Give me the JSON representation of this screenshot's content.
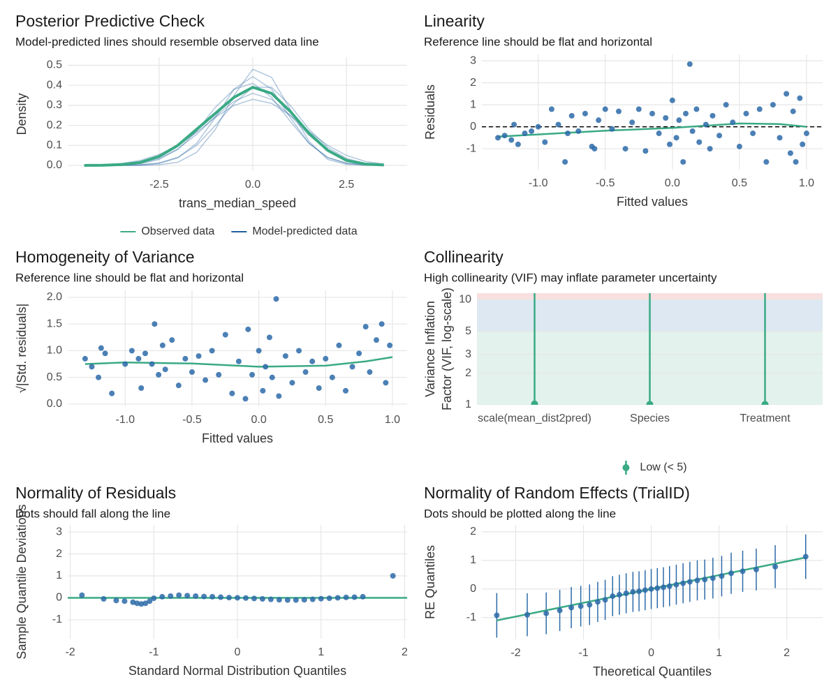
{
  "chart_data": [
    {
      "type": "line",
      "title": "Posterior Predictive Check",
      "subtitle": "Model-predicted lines should resemble observed data line",
      "x_label": "trans_median_speed",
      "y_label": "Density",
      "xlim": [
        -4.94,
        4.12
      ],
      "ylim": [
        -0.028,
        0.54
      ],
      "xticks": [
        -2.5,
        {
          "value": 0,
          "label": "0.0"
        },
        2.5
      ],
      "yticks": [
        {
          "value": 0,
          "label": "0.0"
        },
        0.1,
        0.2,
        0.3,
        0.4,
        0.5
      ],
      "x": [
        -4.5,
        -4,
        -3.5,
        -3,
        -2.5,
        -2,
        -1.5,
        -1,
        -0.5,
        0,
        0.5,
        1,
        1.5,
        2,
        2.5,
        3,
        3.5
      ],
      "legend": "bottom",
      "series": [
        {
          "name": "Observed data",
          "color": "#3aaa85",
          "values": [
            0,
            0.001,
            0.004,
            0.015,
            0.045,
            0.1,
            0.18,
            0.26,
            0.34,
            0.39,
            0.36,
            0.27,
            0.16,
            0.075,
            0.025,
            0.007,
            0.002
          ]
        },
        {
          "name": "Model-predicted data",
          "color": "#1f5f9e",
          "values": [
            [
              0,
              0,
              0,
              0.002,
              0.01,
              0.038,
              0.11,
              0.239,
              0.381,
              0.443,
              0.381,
              0.239,
              0.11,
              0.038,
              0.01,
              0.002,
              0
            ],
            [
              0,
              0.001,
              0.004,
              0.012,
              0.035,
              0.082,
              0.155,
              0.245,
              0.32,
              0.36,
              0.33,
              0.25,
              0.15,
              0.075,
              0.028,
              0.008,
              0.002
            ],
            [
              0,
              0,
              0.001,
              0.003,
              0.012,
              0.04,
              0.1,
              0.2,
              0.31,
              0.39,
              0.39,
              0.3,
              0.18,
              0.09,
              0.035,
              0.01,
              0.002
            ],
            [
              0,
              0,
              0.002,
              0.008,
              0.03,
              0.08,
              0.17,
              0.29,
              0.38,
              0.41,
              0.34,
              0.22,
              0.11,
              0.04,
              0.012,
              0.003,
              0
            ],
            [
              0.001,
              0.003,
              0.01,
              0.025,
              0.055,
              0.1,
              0.165,
              0.24,
              0.3,
              0.33,
              0.31,
              0.25,
              0.17,
              0.1,
              0.05,
              0.02,
              0.007
            ],
            [
              0,
              0,
              0,
              0,
              0.003,
              0.016,
              0.065,
              0.18,
              0.35,
              0.48,
              0.44,
              0.28,
              0.12,
              0.03,
              0.005,
              0,
              0
            ]
          ]
        }
      ]
    },
    {
      "type": "scatter",
      "title": "Linearity",
      "subtitle": "Reference line should be flat and horizontal",
      "x_label": "Fitted values",
      "y_label": "Residuals",
      "xlim": [
        -1.42,
        1.12
      ],
      "ylim": [
        -1.95,
        3.29
      ],
      "xticks": [
        {
          "value": -1,
          "label": "-1.0"
        },
        -0.5,
        {
          "value": 0,
          "label": "0.0"
        },
        0.5,
        {
          "value": 1,
          "label": "1.0"
        }
      ],
      "yticks": [
        -1,
        0,
        1,
        2,
        3
      ],
      "hline": {
        "value": 0,
        "color": "#000000",
        "dashed": true
      },
      "points": {
        "color": "#2c6aa8",
        "x": [
          -1.3,
          -1.25,
          -1.2,
          -1.18,
          -1.15,
          -1.1,
          -1.05,
          -1.0,
          -0.95,
          -0.9,
          -0.85,
          -0.8,
          -0.78,
          -0.75,
          -0.7,
          -0.65,
          -0.6,
          -0.58,
          -0.55,
          -0.5,
          -0.45,
          -0.4,
          -0.35,
          -0.3,
          -0.25,
          -0.2,
          -0.15,
          -0.1,
          -0.05,
          -0.02,
          0.0,
          0.03,
          0.05,
          0.08,
          0.1,
          0.13,
          0.15,
          0.18,
          0.2,
          0.25,
          0.28,
          0.3,
          0.35,
          0.4,
          0.45,
          0.5,
          0.55,
          0.6,
          0.65,
          0.7,
          0.75,
          0.8,
          0.85,
          0.88,
          0.9,
          0.92,
          0.95,
          0.97,
          1.0
        ],
        "y": [
          -0.5,
          -0.4,
          -0.6,
          0.1,
          -0.8,
          -0.3,
          -0.2,
          0.0,
          -0.7,
          0.8,
          0.1,
          -1.6,
          -0.3,
          0.5,
          -0.2,
          0.6,
          -0.9,
          -1.0,
          0.3,
          0.8,
          -0.1,
          0.7,
          -1.0,
          0.2,
          0.8,
          -1.1,
          0.6,
          -0.3,
          0.4,
          -0.8,
          1.2,
          -0.5,
          0.3,
          -1.6,
          0.6,
          2.85,
          -0.2,
          0.8,
          -0.7,
          0.1,
          -1.0,
          0.5,
          -0.4,
          1.0,
          0.2,
          -0.9,
          0.6,
          -0.3,
          0.8,
          -1.6,
          1.0,
          -0.5,
          1.5,
          -1.2,
          0.7,
          -1.6,
          1.3,
          -0.8,
          -0.3
        ]
      },
      "smooth": {
        "color": "#3aaa85",
        "x": [
          -1.3,
          -1.0,
          -0.5,
          0,
          0.5,
          0.8,
          1.0
        ],
        "y": [
          -0.45,
          -0.35,
          -0.18,
          -0.05,
          0.15,
          0.12,
          0.0
        ]
      }
    },
    {
      "type": "scatter",
      "title": "Homogeneity of Variance",
      "subtitle": "Reference line should be flat and horizontal",
      "x_label": "Fitted values",
      "y_label": "√|Std. residuals|",
      "xlim": [
        -1.43,
        1.11
      ],
      "ylim": [
        -0.04,
        2.13
      ],
      "xticks": [
        {
          "value": -1,
          "label": "-1.0"
        },
        -0.5,
        {
          "value": 0,
          "label": "0.0"
        },
        0.5,
        {
          "value": 1,
          "label": "1.0"
        }
      ],
      "yticks": [
        {
          "value": 0,
          "label": "0.0"
        },
        0.5,
        {
          "value": 1,
          "label": "1.0"
        },
        1.5,
        {
          "value": 2,
          "label": "2.0"
        }
      ],
      "points": {
        "color": "#2c6aa8",
        "x": [
          -1.3,
          -1.25,
          -1.2,
          -1.18,
          -1.15,
          -1.1,
          -1.0,
          -0.95,
          -0.9,
          -0.88,
          -0.85,
          -0.8,
          -0.78,
          -0.75,
          -0.72,
          -0.7,
          -0.65,
          -0.6,
          -0.55,
          -0.5,
          -0.45,
          -0.4,
          -0.35,
          -0.3,
          -0.25,
          -0.2,
          -0.15,
          -0.1,
          -0.08,
          -0.05,
          0.0,
          0.03,
          0.05,
          0.08,
          0.1,
          0.13,
          0.15,
          0.2,
          0.25,
          0.3,
          0.35,
          0.4,
          0.45,
          0.5,
          0.55,
          0.6,
          0.65,
          0.7,
          0.75,
          0.8,
          0.83,
          0.88,
          0.92,
          0.95,
          0.98
        ],
        "y": [
          0.85,
          0.7,
          0.5,
          1.05,
          0.95,
          0.2,
          0.75,
          1.0,
          0.85,
          0.3,
          0.95,
          0.75,
          1.5,
          0.55,
          1.1,
          0.65,
          1.2,
          0.35,
          0.85,
          0.6,
          0.9,
          0.45,
          1.0,
          0.55,
          1.3,
          0.2,
          0.8,
          0.1,
          1.4,
          0.55,
          1.0,
          0.25,
          0.7,
          1.25,
          0.5,
          1.97,
          0.15,
          0.9,
          0.4,
          1.0,
          0.6,
          0.8,
          0.3,
          0.85,
          0.5,
          1.1,
          0.25,
          0.7,
          0.95,
          1.45,
          0.6,
          1.2,
          1.5,
          0.4,
          1.1
        ]
      },
      "smooth": {
        "color": "#3aaa85",
        "x": [
          -1.3,
          -1.0,
          -0.5,
          0,
          0.5,
          0.8,
          1.0
        ],
        "y": [
          0.75,
          0.78,
          0.76,
          0.7,
          0.72,
          0.8,
          0.88
        ]
      }
    },
    {
      "type": "pointrange",
      "title": "Collinearity",
      "subtitle": "High collinearity (VIF) may inflate parameter uncertainty",
      "y_label": [
        "Variance Inflation",
        "Factor (VIF, log-scale)"
      ],
      "log_scale": true,
      "ylim": [
        1,
        11.5
      ],
      "yticks": [
        1,
        2,
        3,
        5,
        10
      ],
      "bands": [
        {
          "from": 1,
          "to": 5,
          "color": "#e3f2ec"
        },
        {
          "from": 5,
          "to": 10,
          "color": "#dde8f2"
        },
        {
          "from": 10,
          "to": 11.5,
          "color": "#f8e0e0"
        }
      ],
      "categories": [
        "scale(mean_dist2pred)",
        "Species",
        "Treatment"
      ],
      "legend": "bottom",
      "series": [
        {
          "name": "Low (< 5)",
          "color": "#3aaa85",
          "values": [
            1.02,
            1.01,
            1.01
          ],
          "ci_upper": [
            11.5,
            11.5,
            11.5
          ]
        }
      ]
    },
    {
      "type": "scatter",
      "title": "Normality of Residuals",
      "subtitle": "Dots should fall along the line",
      "x_label": "Standard Normal Distribution Quantiles",
      "y_label": "Sample Quantile Deviations",
      "xlim": [
        -2.03,
        2.03
      ],
      "ylim": [
        -1.86,
        3.32
      ],
      "xticks": [
        -2,
        -1,
        0,
        1,
        2
      ],
      "yticks": [
        -1,
        0,
        1,
        2,
        3
      ],
      "hline": {
        "value": 0,
        "color": "#3aaa85",
        "dashed": false
      },
      "points": {
        "color": "#2c6aa8",
        "x": [
          -1.86,
          -1.6,
          -1.45,
          -1.35,
          -1.25,
          -1.2,
          -1.15,
          -1.1,
          -1.05,
          -1.0,
          -0.9,
          -0.8,
          -0.7,
          -0.6,
          -0.5,
          -0.4,
          -0.3,
          -0.2,
          -0.1,
          0,
          0.1,
          0.2,
          0.3,
          0.4,
          0.5,
          0.6,
          0.7,
          0.8,
          0.9,
          1.0,
          1.1,
          1.2,
          1.3,
          1.4,
          1.5,
          1.86
        ],
        "y": [
          0.12,
          -0.05,
          -0.12,
          -0.15,
          -0.2,
          -0.25,
          -0.28,
          -0.25,
          -0.15,
          -0.02,
          0.05,
          0.08,
          0.12,
          0.1,
          0.08,
          0.06,
          0.05,
          0.03,
          0.01,
          0.0,
          -0.01,
          -0.03,
          -0.05,
          -0.07,
          -0.09,
          -0.1,
          -0.1,
          -0.09,
          -0.07,
          -0.04,
          -0.02,
          0.0,
          0.02,
          0.03,
          0.05,
          1.0
        ]
      }
    },
    {
      "type": "scatter",
      "title": "Normality of Random Effects (TrialID)",
      "subtitle": "Dots should be plotted along the line",
      "x_label": "Theoretical Quantiles",
      "y_label": "RE Quantiles",
      "xlim": [
        -2.5,
        2.53
      ],
      "ylim": [
        -1.76,
        2.24
      ],
      "xticks": [
        -2,
        -1,
        0,
        1,
        2
      ],
      "yticks": [
        -1,
        0,
        1,
        2
      ],
      "smooth": {
        "color": "#3aaa85",
        "x": [
          -2.28,
          2.28
        ],
        "y": [
          -1.1,
          1.1
        ]
      },
      "points": {
        "color": "#2c6aa8",
        "x": [
          -2.28,
          -1.83,
          -1.55,
          -1.35,
          -1.18,
          -1.04,
          -0.91,
          -0.79,
          -0.68,
          -0.57,
          -0.47,
          -0.37,
          -0.27,
          -0.18,
          -0.09,
          0,
          0.09,
          0.18,
          0.27,
          0.37,
          0.47,
          0.57,
          0.68,
          0.79,
          0.91,
          1.04,
          1.18,
          1.35,
          1.55,
          1.83,
          2.28
        ],
        "y": [
          -0.92,
          -0.9,
          -0.85,
          -0.75,
          -0.65,
          -0.6,
          -0.55,
          -0.45,
          -0.38,
          -0.25,
          -0.2,
          -0.15,
          -0.1,
          -0.08,
          -0.04,
          0.0,
          0.03,
          0.06,
          0.1,
          0.15,
          0.2,
          0.25,
          0.3,
          0.33,
          0.38,
          0.45,
          0.55,
          0.62,
          0.68,
          0.78,
          1.13
        ],
        "errors": [
          0.78,
          0.75,
          0.73,
          0.72,
          0.72,
          0.71,
          0.71,
          0.7,
          0.7,
          0.7,
          0.7,
          0.7,
          0.7,
          0.7,
          0.7,
          0.7,
          0.7,
          0.7,
          0.7,
          0.7,
          0.7,
          0.7,
          0.7,
          0.7,
          0.71,
          0.71,
          0.72,
          0.72,
          0.73,
          0.75,
          0.78
        ]
      }
    }
  ]
}
